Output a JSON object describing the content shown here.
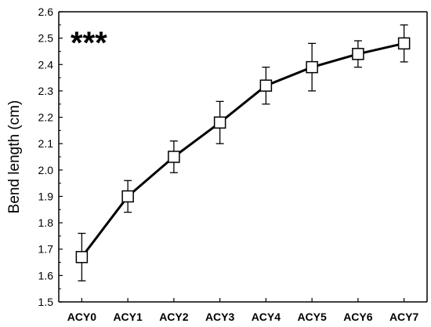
{
  "chart_data": {
    "type": "line",
    "title": "",
    "xlabel": "",
    "ylabel": "Bend length (cm)",
    "annotation": "***",
    "categories": [
      "ACY0",
      "ACY1",
      "ACY2",
      "ACY3",
      "ACY4",
      "ACY5",
      "ACY6",
      "ACY7"
    ],
    "series": [
      {
        "values": [
          1.67,
          1.9,
          2.05,
          2.18,
          2.32,
          2.39,
          2.44,
          2.48
        ],
        "error": [
          0.09,
          0.06,
          0.06,
          0.08,
          0.07,
          0.09,
          0.05,
          0.07
        ],
        "marker": "square-open",
        "color": "#000000"
      }
    ],
    "ylim": [
      1.5,
      2.6
    ],
    "yticks": [
      "1.5",
      "1.6",
      "1.7",
      "1.8",
      "1.9",
      "2.0",
      "2.1",
      "2.2",
      "2.3",
      "2.4",
      "2.5",
      "2.6"
    ],
    "grid": false,
    "legend": "none"
  }
}
